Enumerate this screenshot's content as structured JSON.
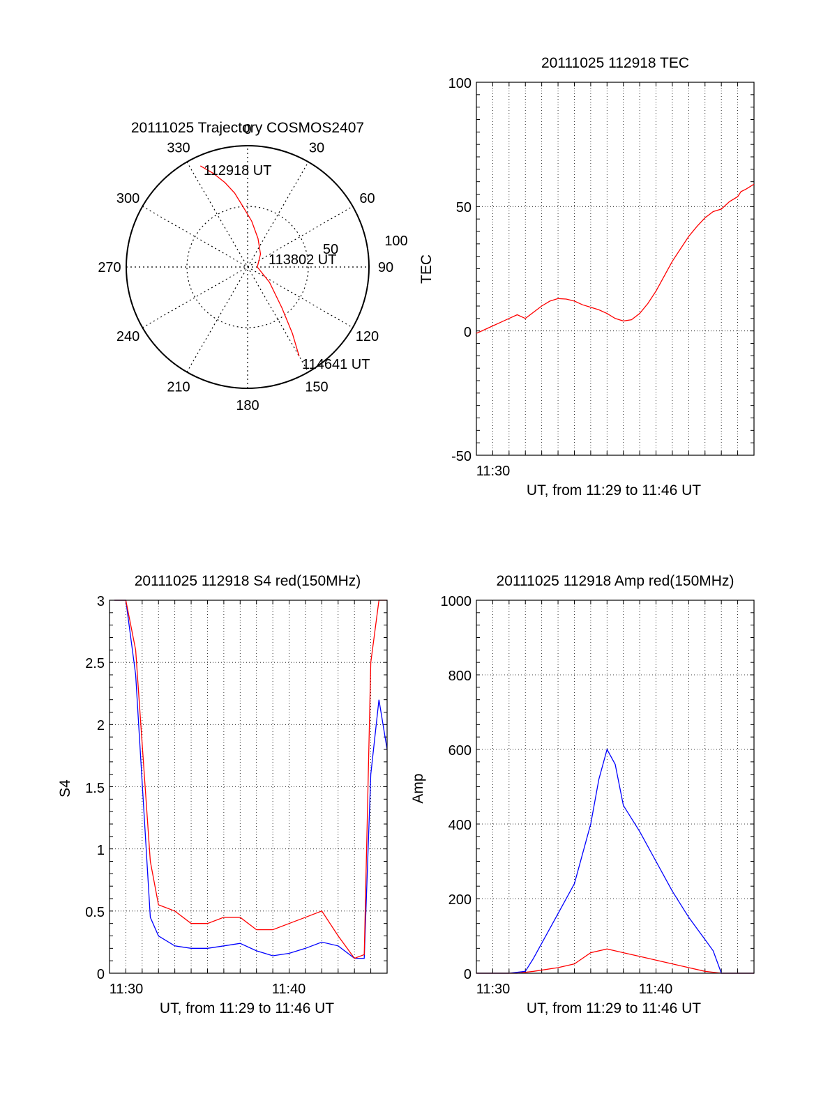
{
  "chart_data": [
    {
      "type": "polar",
      "title": "20111025 Trajectory COSMOS2407",
      "azimuth_labels": [
        "0",
        "30",
        "60",
        "90",
        "120",
        "150",
        "180",
        "210",
        "240",
        "270",
        "300",
        "330"
      ],
      "radial_ticks": [
        "50",
        "100"
      ],
      "annotations": [
        "112918 UT",
        "113802 UT",
        "114641 UT"
      ],
      "trajectory": {
        "color": "#ff0000",
        "azimuth_deg": [
          335,
          340,
          345,
          350,
          355,
          5,
          20,
          45,
          90,
          125,
          140,
          146,
          150
        ],
        "zenith_deg": [
          92,
          82,
          72,
          62,
          51,
          38,
          25,
          15,
          8,
          22,
          44,
          66,
          85
        ]
      }
    },
    {
      "type": "line",
      "title": "20111025 112918 TEC",
      "xlabel": "UT, from 11:29 to 11:46 UT",
      "ylabel": "TEC",
      "xlim": [
        0,
        17
      ],
      "ylim": [
        -50,
        100
      ],
      "x_ticks": [
        {
          "x": 1,
          "label": "11:30"
        }
      ],
      "y_ticks": [
        "-50",
        "0",
        "50",
        "100"
      ],
      "grid": true,
      "series": [
        {
          "color": "#ff0000",
          "x": [
            0,
            0.5,
            1.0,
            1.5,
            2.0,
            2.5,
            3.0,
            3.5,
            4.0,
            4.5,
            5.0,
            5.5,
            6.0,
            6.5,
            7.0,
            7.5,
            8.0,
            8.5,
            9.0,
            9.5,
            10.0,
            10.5,
            11.0,
            11.5,
            12.0,
            12.5,
            13.0,
            13.5,
            14.0,
            14.5,
            15.0,
            15.5,
            16.0,
            16.2,
            16.5,
            17.0
          ],
          "y": [
            -1,
            0.5,
            2,
            3.5,
            5,
            6.5,
            5,
            7.5,
            10,
            12,
            13,
            12.8,
            12,
            10.5,
            9.5,
            8.5,
            7,
            5,
            4,
            4.5,
            7,
            11,
            16,
            22,
            28,
            33,
            38,
            42,
            45.5,
            48,
            49,
            52,
            54,
            56,
            57,
            59
          ]
        }
      ]
    },
    {
      "type": "line",
      "title": "20111025 112918 S4 red(150MHz)",
      "xlabel": "UT, from 11:29 to 11:46 UT",
      "ylabel": "S4",
      "xlim": [
        0,
        17
      ],
      "ylim": [
        0,
        3
      ],
      "x_ticks": [
        {
          "x": 1,
          "label": "11:30"
        },
        {
          "x": 11,
          "label": "11:40"
        }
      ],
      "y_ticks": [
        "0",
        "0.5",
        "1",
        "1.5",
        "2",
        "2.5",
        "3"
      ],
      "grid": true,
      "series": [
        {
          "color": "#ff0000",
          "x": [
            0.3,
            1.0,
            1.6,
            2.5,
            3.0,
            4.0,
            5.0,
            6.0,
            7.0,
            8.0,
            9.0,
            10.0,
            11.0,
            12.0,
            13.0,
            14.0,
            15.0,
            15.6,
            16.0,
            16.5,
            17.0
          ],
          "y": [
            3.0,
            3.0,
            2.6,
            0.9,
            0.55,
            0.5,
            0.4,
            0.4,
            0.45,
            0.45,
            0.35,
            0.35,
            0.4,
            0.45,
            0.5,
            0.3,
            0.12,
            0.15,
            2.5,
            3.0,
            3.0
          ]
        },
        {
          "color": "#0000ff",
          "x": [
            0.3,
            1.0,
            1.6,
            2.5,
            3.0,
            4.0,
            5.0,
            6.0,
            7.0,
            8.0,
            9.0,
            10.0,
            11.0,
            12.0,
            13.0,
            14.0,
            15.0,
            15.6,
            16.0,
            16.5,
            17.0
          ],
          "y": [
            3.0,
            3.0,
            2.4,
            0.45,
            0.3,
            0.22,
            0.2,
            0.2,
            0.22,
            0.24,
            0.18,
            0.14,
            0.16,
            0.2,
            0.25,
            0.22,
            0.12,
            0.12,
            1.6,
            2.2,
            1.8
          ]
        }
      ]
    },
    {
      "type": "line",
      "title": "20111025 112918 Amp red(150MHz)",
      "xlabel": "UT, from 11:29 to 11:46 UT",
      "ylabel": "Amp",
      "xlim": [
        0,
        17
      ],
      "ylim": [
        0,
        1000
      ],
      "x_ticks": [
        {
          "x": 1,
          "label": "11:30"
        },
        {
          "x": 11,
          "label": "11:40"
        }
      ],
      "y_ticks": [
        "0",
        "200",
        "400",
        "600",
        "800",
        "1000"
      ],
      "grid": true,
      "series": [
        {
          "color": "#0000ff",
          "x": [
            0,
            2.0,
            3.0,
            3.5,
            4.0,
            5.0,
            6.0,
            7.0,
            7.5,
            8.0,
            8.5,
            9.0,
            10.0,
            11.0,
            12.0,
            13.0,
            14.0,
            14.5,
            15.0,
            17.0
          ],
          "y": [
            0,
            0,
            5,
            40,
            80,
            160,
            240,
            400,
            520,
            600,
            560,
            450,
            380,
            300,
            220,
            150,
            90,
            60,
            0,
            0
          ]
        },
        {
          "color": "#ff0000",
          "x": [
            0,
            2.5,
            3.5,
            5.0,
            6.0,
            7.0,
            8.0,
            9.0,
            10.0,
            11.0,
            12.0,
            13.0,
            14.0,
            15.0,
            17.0
          ],
          "y": [
            0,
            0,
            5,
            15,
            25,
            55,
            65,
            55,
            45,
            35,
            25,
            15,
            5,
            0,
            0
          ]
        }
      ]
    }
  ]
}
